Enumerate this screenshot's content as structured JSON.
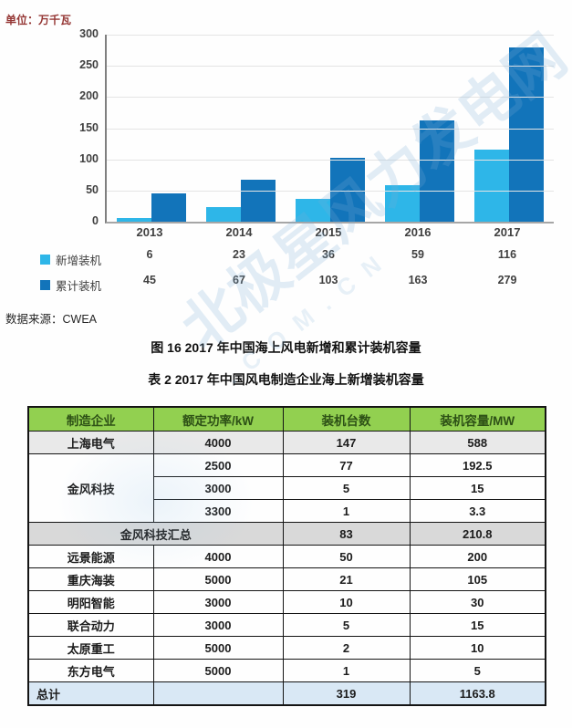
{
  "unit_label": "单位：万千瓦",
  "chart_data": {
    "type": "bar",
    "categories": [
      "2013",
      "2014",
      "2015",
      "2016",
      "2017"
    ],
    "series": [
      {
        "name": "新增装机",
        "color": "#2eb6e8",
        "values": [
          6,
          23,
          36,
          59,
          116
        ]
      },
      {
        "name": "累计装机",
        "color": "#1274ba",
        "values": [
          45,
          67,
          103,
          163,
          279
        ]
      }
    ],
    "title": "2017年中国海上风电新增和累计装机容量",
    "xlabel": "",
    "ylabel": "万千瓦",
    "ylim": [
      0,
      300
    ],
    "yticks": [
      0,
      50,
      100,
      150,
      200,
      250,
      300
    ],
    "grid": true,
    "legend_position": "bottom-table"
  },
  "source": "数据来源：CWEA",
  "fig_caption": "图 16  2017 年中国海上风电新增和累计装机容量",
  "table_caption": "表 2  2017 年中国风电制造企业海上新增装机容量",
  "watermark": {
    "text": "北极星风力发电网",
    "subtext": ".COM.CN"
  },
  "table": {
    "headers": [
      "制造企业",
      "额定功率/kW",
      "装机台数",
      "装机容量/MW"
    ],
    "shanghai": {
      "name": "上海电气",
      "power": "4000",
      "units": "147",
      "capacity": "588"
    },
    "goldwind": {
      "name": "金风科技",
      "subrows": [
        {
          "power": "2500",
          "units": "77",
          "capacity": "192.5"
        },
        {
          "power": "3000",
          "units": "5",
          "capacity": "15"
        },
        {
          "power": "3300",
          "units": "1",
          "capacity": "3.3"
        }
      ]
    },
    "goldwind_total": {
      "label": "金风科技汇总",
      "units": "83",
      "capacity": "210.8"
    },
    "rows": [
      {
        "name": "远景能源",
        "power": "4000",
        "units": "50",
        "capacity": "200"
      },
      {
        "name": "重庆海装",
        "power": "5000",
        "units": "21",
        "capacity": "105"
      },
      {
        "name": "明阳智能",
        "power": "3000",
        "units": "10",
        "capacity": "30"
      },
      {
        "name": "联合动力",
        "power": "3000",
        "units": "5",
        "capacity": "15"
      },
      {
        "name": "太原重工",
        "power": "5000",
        "units": "2",
        "capacity": "10"
      },
      {
        "name": "东方电气",
        "power": "5000",
        "units": "1",
        "capacity": "5"
      }
    ],
    "total": {
      "label": "总计",
      "power": "",
      "units": "319",
      "capacity": "1163.8"
    }
  },
  "colors": {
    "bar_new": "#2eb6e8",
    "bar_cumulative": "#1274ba",
    "table_header_bg": "#92d050",
    "table_header_text": "#2d5016",
    "summary_row_bg": "#d9d9d9",
    "total_row_bg": "#d9e8f5",
    "unit_label_text": "#953735"
  }
}
